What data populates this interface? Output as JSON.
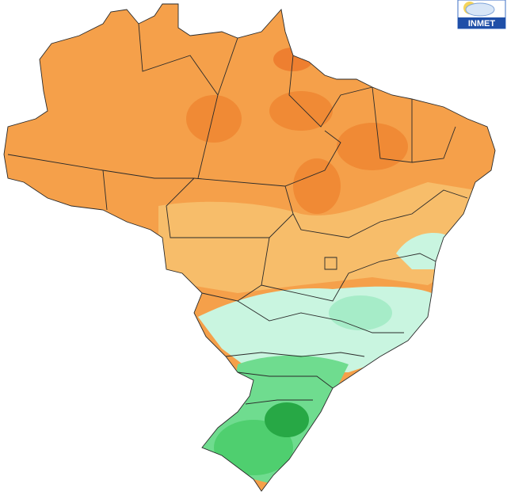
{
  "logo": {
    "text": "INMET"
  }
}
